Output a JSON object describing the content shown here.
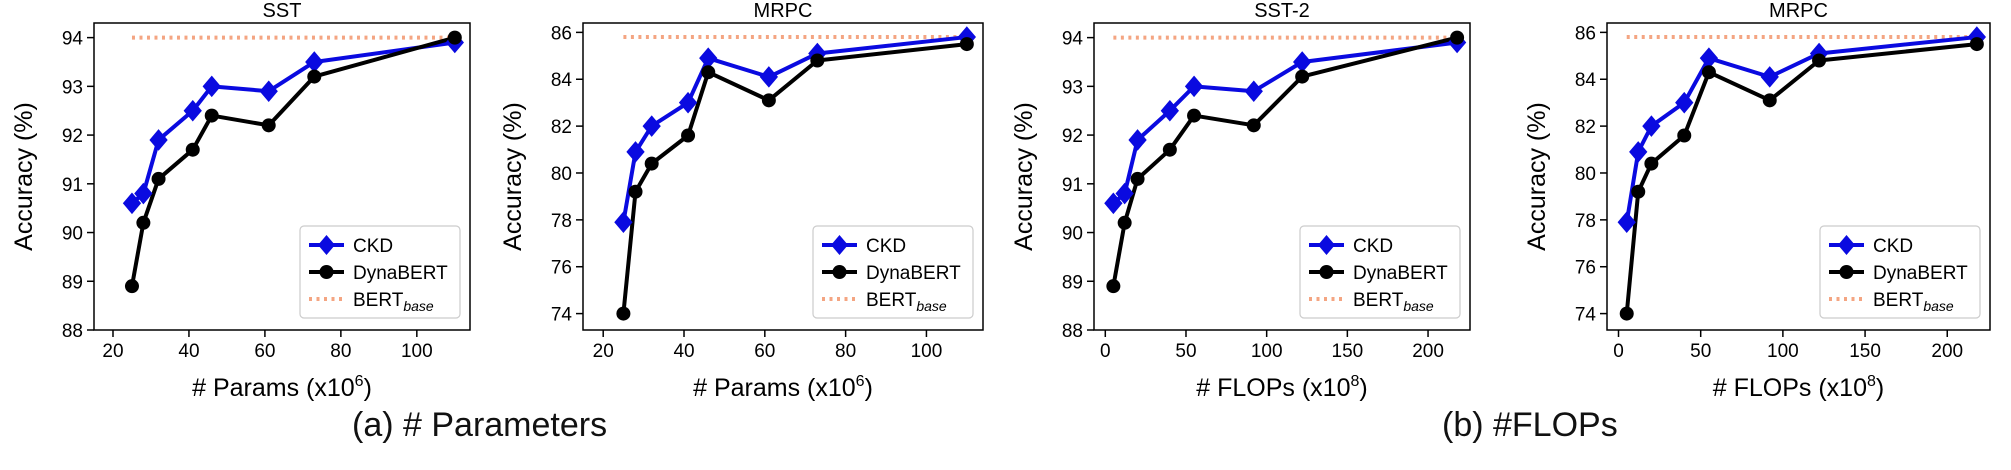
{
  "colors": {
    "ckd": "#0a0ae0",
    "dynabert": "#000000",
    "bert_base": "#f4a582",
    "axis": "#000000"
  },
  "captions": {
    "a": "(a) # Parameters",
    "b": "(b) #FLOPs"
  },
  "chart_data": [
    {
      "type": "line",
      "title": "SST",
      "xlabel": "# Params (x10",
      "xlabel_sup": "6",
      "xlabel_close": ")",
      "ylabel": "Accuracy (%)",
      "xlim": [
        15,
        114
      ],
      "ylim": [
        88,
        94.3
      ],
      "xticks": [
        20,
        40,
        60,
        80,
        100
      ],
      "yticks": [
        88,
        89,
        90,
        91,
        92,
        93,
        94
      ],
      "legend": "bottom-right",
      "series": [
        {
          "name": "CKD",
          "marker": "diamond",
          "x": [
            25,
            28,
            32,
            41,
            46,
            61,
            73,
            110
          ],
          "y": [
            90.6,
            90.8,
            91.9,
            92.5,
            93.0,
            92.9,
            93.5,
            93.9
          ]
        },
        {
          "name": "DynaBERT",
          "marker": "circle",
          "x": [
            25,
            28,
            32,
            41,
            46,
            61,
            73,
            110
          ],
          "y": [
            88.9,
            90.2,
            91.1,
            91.7,
            92.4,
            92.2,
            93.2,
            94.0
          ]
        }
      ],
      "baseline": {
        "name": "BERT",
        "name_sub": "base",
        "y": 94.0,
        "x": [
          25,
          110
        ]
      }
    },
    {
      "type": "line",
      "title": "MRPC",
      "xlabel": "# Params (x10",
      "xlabel_sup": "6",
      "xlabel_close": ")",
      "ylabel": "Accuracy (%)",
      "xlim": [
        15,
        114
      ],
      "ylim": [
        73.3,
        86.4
      ],
      "xticks": [
        20,
        40,
        60,
        80,
        100
      ],
      "yticks": [
        74,
        76,
        78,
        80,
        82,
        84,
        86
      ],
      "legend": "bottom-right",
      "series": [
        {
          "name": "CKD",
          "marker": "diamond",
          "x": [
            25,
            28,
            32,
            41,
            46,
            61,
            73,
            110
          ],
          "y": [
            77.9,
            80.9,
            82.0,
            83.0,
            84.9,
            84.1,
            85.1,
            85.8
          ]
        },
        {
          "name": "DynaBERT",
          "marker": "circle",
          "x": [
            25,
            28,
            32,
            41,
            46,
            61,
            73,
            110
          ],
          "y": [
            74.0,
            79.2,
            80.4,
            81.6,
            84.3,
            83.1,
            84.8,
            85.5
          ]
        }
      ],
      "baseline": {
        "name": "BERT",
        "name_sub": "base",
        "y": 85.8,
        "x": [
          25,
          110
        ]
      }
    },
    {
      "type": "line",
      "title": "SST-2",
      "xlabel": "# FLOPs (x10",
      "xlabel_sup": "8",
      "xlabel_close": ")",
      "ylabel": "Accuracy (%)",
      "xlim": [
        -7,
        226
      ],
      "ylim": [
        88,
        94.3
      ],
      "xticks": [
        0,
        50,
        100,
        150,
        200
      ],
      "yticks": [
        88,
        89,
        90,
        91,
        92,
        93,
        94
      ],
      "legend": "bottom-right",
      "series": [
        {
          "name": "CKD",
          "marker": "diamond",
          "x": [
            5,
            12,
            20,
            40,
            55,
            92,
            122,
            218
          ],
          "y": [
            90.6,
            90.8,
            91.9,
            92.5,
            93.0,
            92.9,
            93.5,
            93.9
          ]
        },
        {
          "name": "DynaBERT",
          "marker": "circle",
          "x": [
            5,
            12,
            20,
            40,
            55,
            92,
            122,
            218
          ],
          "y": [
            88.9,
            90.2,
            91.1,
            91.7,
            92.4,
            92.2,
            93.2,
            94.0
          ]
        }
      ],
      "baseline": {
        "name": "BERT",
        "name_sub": "base",
        "y": 94.0,
        "x": [
          5,
          218
        ]
      }
    },
    {
      "type": "line",
      "title": "MRPC",
      "xlabel": "# FLOPs (x10",
      "xlabel_sup": "8",
      "xlabel_close": ")",
      "ylabel": "Accuracy (%)",
      "xlim": [
        -7,
        226
      ],
      "ylim": [
        73.3,
        86.4
      ],
      "xticks": [
        0,
        50,
        100,
        150,
        200
      ],
      "yticks": [
        74,
        76,
        78,
        80,
        82,
        84,
        86
      ],
      "legend": "bottom-right",
      "series": [
        {
          "name": "CKD",
          "marker": "diamond",
          "x": [
            5,
            12,
            20,
            40,
            55,
            92,
            122,
            218
          ],
          "y": [
            77.9,
            80.9,
            82.0,
            83.0,
            84.9,
            84.1,
            85.1,
            85.8
          ]
        },
        {
          "name": "DynaBERT",
          "marker": "circle",
          "x": [
            5,
            12,
            20,
            40,
            55,
            92,
            122,
            218
          ],
          "y": [
            74.0,
            79.2,
            80.4,
            81.6,
            84.3,
            83.1,
            84.8,
            85.5
          ]
        }
      ],
      "baseline": {
        "name": "BERT",
        "name_sub": "base",
        "y": 85.8,
        "x": [
          5,
          218
        ]
      }
    }
  ]
}
